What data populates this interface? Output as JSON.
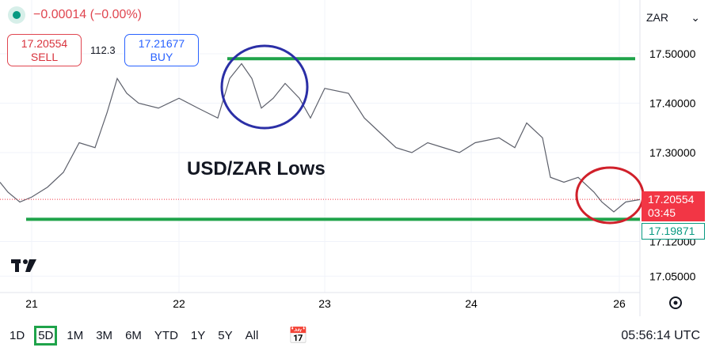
{
  "header": {
    "change": "−0.00014 (−0.00%)",
    "sell_price": "17.20554",
    "sell_label": "SELL",
    "spread": "112.3",
    "buy_price": "17.21677",
    "buy_label": "BUY",
    "currency": "ZAR"
  },
  "annotation": "USD/ZAR Lows",
  "price_axis": [
    "17.50000",
    "17.40000",
    "17.30000",
    "17.12000",
    "17.05000"
  ],
  "last_price": {
    "price": "17.20554",
    "countdown": "03:45",
    "color": "#f23645"
  },
  "bid_label": "17.19871",
  "time_axis": [
    "21",
    "22",
    "23",
    "24",
    "26"
  ],
  "toolbar": {
    "timeframes": [
      "1D",
      "5D",
      "1M",
      "3M",
      "6M",
      "YTD",
      "1Y",
      "5Y",
      "All"
    ],
    "active": "5D",
    "clock": "05:56:14 UTC"
  },
  "colors": {
    "support_resistance": "#1fa34a",
    "high_circle": "#2b2fa6",
    "low_circle": "#d0202a",
    "up": "#089981",
    "down": "#f23645"
  },
  "chart_data": {
    "type": "line",
    "resistance": 17.49,
    "support": 17.165,
    "series": [
      [
        0,
        17.24
      ],
      [
        10,
        17.22
      ],
      [
        25,
        17.2
      ],
      [
        40,
        17.21
      ],
      [
        60,
        17.23
      ],
      [
        80,
        17.26
      ],
      [
        100,
        17.32
      ],
      [
        120,
        17.31
      ],
      [
        135,
        17.38
      ],
      [
        148,
        17.45
      ],
      [
        160,
        17.42
      ],
      [
        175,
        17.4
      ],
      [
        200,
        17.39
      ],
      [
        226,
        17.41
      ],
      [
        250,
        17.39
      ],
      [
        275,
        17.37
      ],
      [
        290,
        17.45
      ],
      [
        305,
        17.48
      ],
      [
        318,
        17.45
      ],
      [
        330,
        17.39
      ],
      [
        345,
        17.41
      ],
      [
        360,
        17.44
      ],
      [
        378,
        17.41
      ],
      [
        392,
        17.37
      ],
      [
        410,
        17.43
      ],
      [
        440,
        17.42
      ],
      [
        460,
        17.37
      ],
      [
        480,
        17.34
      ],
      [
        500,
        17.31
      ],
      [
        520,
        17.3
      ],
      [
        540,
        17.32
      ],
      [
        560,
        17.31
      ],
      [
        580,
        17.3
      ],
      [
        600,
        17.32
      ],
      [
        630,
        17.33
      ],
      [
        650,
        17.31
      ],
      [
        665,
        17.36
      ],
      [
        685,
        17.33
      ],
      [
        695,
        17.25
      ],
      [
        712,
        17.24
      ],
      [
        730,
        17.25
      ],
      [
        750,
        17.22
      ],
      [
        760,
        17.2
      ],
      [
        775,
        17.18
      ],
      [
        790,
        17.2
      ],
      [
        808,
        17.205
      ]
    ]
  }
}
